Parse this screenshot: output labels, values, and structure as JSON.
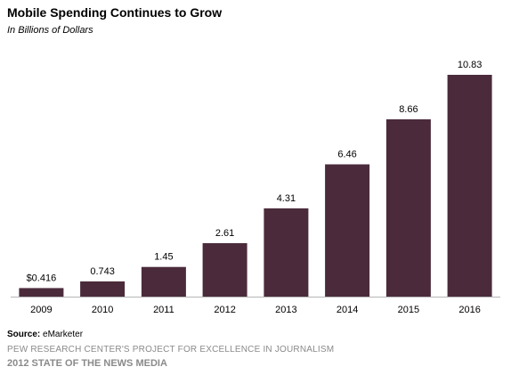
{
  "chart_data": {
    "type": "bar",
    "title": "Mobile Spending Continues to Grow",
    "subtitle": "In Billions of Dollars",
    "categories": [
      "2009",
      "2010",
      "2011",
      "2012",
      "2013",
      "2014",
      "2015",
      "2016"
    ],
    "values": [
      0.416,
      0.743,
      1.45,
      2.61,
      4.31,
      6.46,
      8.66,
      10.83
    ],
    "data_labels": [
      "$0.416",
      "0.743",
      "1.45",
      "2.61",
      "4.31",
      "6.46",
      "8.66",
      "10.83"
    ],
    "xlabel": "",
    "ylabel": "",
    "ylim": [
      0,
      10.83
    ],
    "grid": false,
    "bar_color": "#4b2b3b"
  },
  "source": {
    "label": "Source:",
    "text": "eMarketer"
  },
  "footer": {
    "line1": "PEW RESEARCH CENTER'S PROJECT FOR EXCELLENCE IN JOURNALISM",
    "line2": "2012 STATE OF THE NEWS MEDIA"
  }
}
